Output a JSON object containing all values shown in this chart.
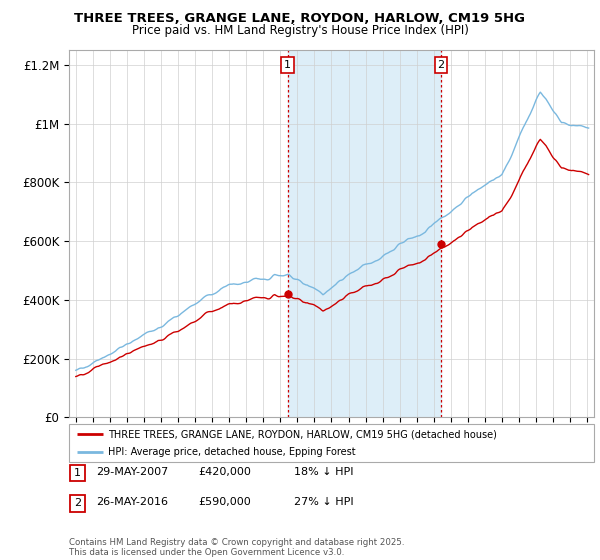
{
  "title": "THREE TREES, GRANGE LANE, ROYDON, HARLOW, CM19 5HG",
  "subtitle": "Price paid vs. HM Land Registry's House Price Index (HPI)",
  "hpi_label": "HPI: Average price, detached house, Epping Forest",
  "property_label": "THREE TREES, GRANGE LANE, ROYDON, HARLOW, CM19 5HG (detached house)",
  "footnote": "Contains HM Land Registry data © Crown copyright and database right 2025.\nThis data is licensed under the Open Government Licence v3.0.",
  "sale1_date": "29-MAY-2007",
  "sale1_price": "£420,000",
  "sale1_hpi": "18% ↓ HPI",
  "sale2_date": "26-MAY-2016",
  "sale2_price": "£590,000",
  "sale2_hpi": "27% ↓ HPI",
  "sale1_year": 2007.42,
  "sale2_year": 2016.42,
  "sale1_price_val": 420000,
  "sale2_price_val": 590000,
  "hpi_color": "#7ab8df",
  "property_color": "#cc0000",
  "highlight_color": "#ddeef8",
  "ylim_min": 0,
  "ylim_max": 1250000,
  "xmin": 1994.6,
  "xmax": 2025.4
}
